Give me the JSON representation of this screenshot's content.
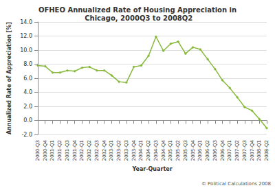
{
  "chart_data": {
    "type": "line",
    "title": "OFHEO Annualized Rate of Housing Appreciation in Chicago, 2000Q3 to 2008Q2",
    "x_label": "Year-Quarter",
    "y_label": "Annualized Rate of Appreciation [%]",
    "annotations": [
      "© Political Calculations 2008"
    ],
    "categories": [
      "2000-Q3",
      "2000-Q4",
      "2001-Q1",
      "2001-Q2",
      "2001-Q3",
      "2001-Q4",
      "2002-Q1",
      "2002-Q2",
      "2002-Q3",
      "2002-Q4",
      "2003-Q1",
      "2003-Q2",
      "2003-Q3",
      "2003-Q4",
      "2004-Q1",
      "2004-Q2",
      "2004-Q3",
      "2004-Q4",
      "2005-Q1",
      "2005-Q2",
      "2005-Q3",
      "2005-Q4",
      "2006-Q1",
      "2006-Q2",
      "2006-Q3",
      "2006-Q4",
      "2007-Q1",
      "2007-Q2",
      "2007-Q3",
      "2007-Q4",
      "2008-Q1",
      "2008-Q2"
    ],
    "values": [
      7.8,
      7.7,
      6.8,
      6.8,
      7.1,
      7.0,
      7.5,
      7.6,
      7.1,
      7.1,
      6.4,
      5.5,
      5.4,
      7.6,
      7.8,
      9.2,
      11.9,
      9.9,
      10.9,
      11.2,
      9.5,
      10.4,
      10.1,
      8.7,
      7.3,
      5.7,
      4.6,
      3.3,
      1.9,
      1.4,
      0.2,
      -1.1
    ],
    "color": "#86b83a",
    "marker": "diamond",
    "ylim": [
      -2,
      14
    ],
    "yticks": [
      {
        "value": -2,
        "label": "-2.0"
      },
      {
        "value": 0,
        "label": "0.0"
      },
      {
        "value": 2,
        "label": "2.0"
      },
      {
        "value": 4,
        "label": "4.0"
      },
      {
        "value": 6,
        "label": "6.0"
      },
      {
        "value": 8,
        "label": "8.0"
      },
      {
        "value": 10,
        "label": "10.0"
      },
      {
        "value": 12,
        "label": "12.0"
      },
      {
        "value": 14,
        "label": "14.0"
      }
    ],
    "grid": true
  }
}
